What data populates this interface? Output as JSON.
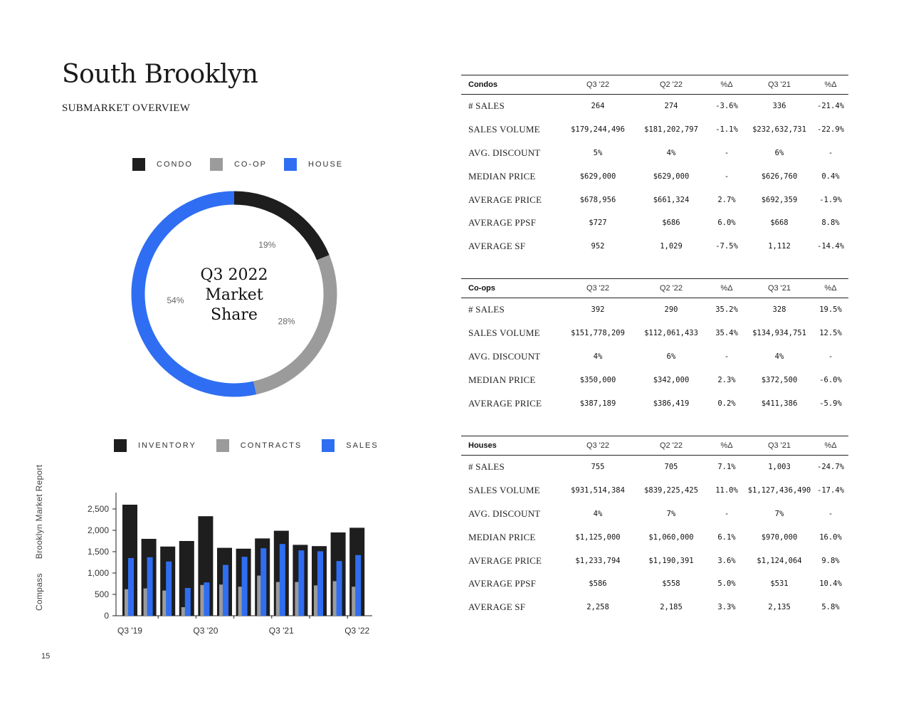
{
  "header": {
    "title": "South Brooklyn",
    "subtitle": "SUBMARKET OVERVIEW"
  },
  "sidebar": {
    "brand": "Compass",
    "report": "Brooklyn Market Report"
  },
  "page_number": "15",
  "legend_share": [
    {
      "label": "CONDO",
      "color": "#1e1e1e"
    },
    {
      "label": "CO-OP",
      "color": "#9b9b9b"
    },
    {
      "label": "HOUSE",
      "color": "#2f6ef2"
    }
  ],
  "legend_bars": [
    {
      "label": "INVENTORY",
      "color": "#1e1e1e"
    },
    {
      "label": "CONTRACTS",
      "color": "#9b9b9b"
    },
    {
      "label": "SALES",
      "color": "#2f6ef2"
    }
  ],
  "chart_data": [
    {
      "type": "pie",
      "title": "Q3 2022 Market Share",
      "title_lines": [
        "Q3 2022",
        "Market",
        "Share"
      ],
      "categories": [
        "Condo",
        "Co-op",
        "House"
      ],
      "values": [
        19,
        28,
        54
      ],
      "labels": [
        "19%",
        "28%",
        "54%"
      ],
      "colors": [
        "#1e1e1e",
        "#9b9b9b",
        "#2f6ef2"
      ]
    },
    {
      "type": "bar",
      "x": [
        "Q3 '19",
        "Q4 '19",
        "Q1 '20",
        "Q2 '20",
        "Q3 '20",
        "Q4 '20",
        "Q1 '21",
        "Q2 '21",
        "Q3 '21",
        "Q4 '21",
        "Q1 '22",
        "Q2 '22",
        "Q3 '22"
      ],
      "x_tick_labels": [
        "Q3 '19",
        "Q3 '20",
        "Q3 '21",
        "Q3 '22"
      ],
      "ylim": [
        0,
        2800
      ],
      "yticks": [
        0,
        500,
        1000,
        1500,
        2000,
        2500
      ],
      "ytick_labels": [
        "0",
        "500",
        "1,000",
        "1,500",
        "2,000",
        "2,500"
      ],
      "series": [
        {
          "name": "INVENTORY",
          "color": "#1e1e1e",
          "values": [
            2600,
            1800,
            1620,
            1750,
            2330,
            1590,
            1570,
            1810,
            1990,
            1660,
            1630,
            1950,
            2060
          ]
        },
        {
          "name": "CONTRACTS",
          "color": "#9b9b9b",
          "values": [
            620,
            640,
            590,
            200,
            720,
            730,
            680,
            940,
            790,
            790,
            710,
            810,
            680
          ]
        },
        {
          "name": "SALES",
          "color": "#2f6ef2",
          "values": [
            1350,
            1370,
            1270,
            650,
            780,
            1190,
            1380,
            1580,
            1680,
            1530,
            1510,
            1280,
            1420
          ]
        }
      ]
    }
  ],
  "tables": [
    {
      "name": "Condos",
      "columns": [
        "Q3 '22",
        "Q2 '22",
        "%Δ",
        "Q3 '21",
        "%Δ"
      ],
      "rows": [
        {
          "label": "# SALES",
          "values": [
            "264",
            "274",
            "-3.6%",
            "336",
            "-21.4%"
          ]
        },
        {
          "label": "SALES VOLUME",
          "values": [
            "$179,244,496",
            "$181,202,797",
            "-1.1%",
            "$232,632,731",
            "-22.9%"
          ]
        },
        {
          "label": "AVG. DISCOUNT",
          "values": [
            "5%",
            "4%",
            "-",
            "6%",
            "-"
          ]
        },
        {
          "label": "MEDIAN PRICE",
          "values": [
            "$629,000",
            "$629,000",
            "-",
            "$626,760",
            "0.4%"
          ]
        },
        {
          "label": "AVERAGE PRICE",
          "values": [
            "$678,956",
            "$661,324",
            "2.7%",
            "$692,359",
            "-1.9%"
          ]
        },
        {
          "label": "AVERAGE PPSF",
          "values": [
            "$727",
            "$686",
            "6.0%",
            "$668",
            "8.8%"
          ]
        },
        {
          "label": "AVERAGE SF",
          "values": [
            "952",
            "1,029",
            "-7.5%",
            "1,112",
            "-14.4%"
          ]
        }
      ]
    },
    {
      "name": "Co-ops",
      "columns": [
        "Q3 '22",
        "Q2 '22",
        "%Δ",
        "Q3 '21",
        "%Δ"
      ],
      "rows": [
        {
          "label": "# SALES",
          "values": [
            "392",
            "290",
            "35.2%",
            "328",
            "19.5%"
          ]
        },
        {
          "label": "SALES VOLUME",
          "values": [
            "$151,778,209",
            "$112,061,433",
            "35.4%",
            "$134,934,751",
            "12.5%"
          ]
        },
        {
          "label": "AVG. DISCOUNT",
          "values": [
            "4%",
            "6%",
            "-",
            "4%",
            "-"
          ]
        },
        {
          "label": "MEDIAN PRICE",
          "values": [
            "$350,000",
            "$342,000",
            "2.3%",
            "$372,500",
            "-6.0%"
          ]
        },
        {
          "label": "AVERAGE PRICE",
          "values": [
            "$387,189",
            "$386,419",
            "0.2%",
            "$411,386",
            "-5.9%"
          ]
        }
      ]
    },
    {
      "name": "Houses",
      "columns": [
        "Q3 '22",
        "Q2 '22",
        "%Δ",
        "Q3 '21",
        "%Δ"
      ],
      "rows": [
        {
          "label": "# SALES",
          "values": [
            "755",
            "705",
            "7.1%",
            "1,003",
            "-24.7%"
          ]
        },
        {
          "label": "SALES VOLUME",
          "values": [
            "$931,514,384",
            "$839,225,425",
            "11.0%",
            "$1,127,436,490",
            "-17.4%"
          ]
        },
        {
          "label": "AVG. DISCOUNT",
          "values": [
            "4%",
            "7%",
            "-",
            "7%",
            "-"
          ]
        },
        {
          "label": "MEDIAN PRICE",
          "values": [
            "$1,125,000",
            "$1,060,000",
            "6.1%",
            "$970,000",
            "16.0%"
          ]
        },
        {
          "label": "AVERAGE PRICE",
          "values": [
            "$1,233,794",
            "$1,190,391",
            "3.6%",
            "$1,124,064",
            "9.8%"
          ]
        },
        {
          "label": "AVERAGE PPSF",
          "values": [
            "$586",
            "$558",
            "5.0%",
            "$531",
            "10.4%"
          ]
        },
        {
          "label": "AVERAGE SF",
          "values": [
            "2,258",
            "2,185",
            "3.3%",
            "2,135",
            "5.8%"
          ]
        }
      ]
    }
  ]
}
